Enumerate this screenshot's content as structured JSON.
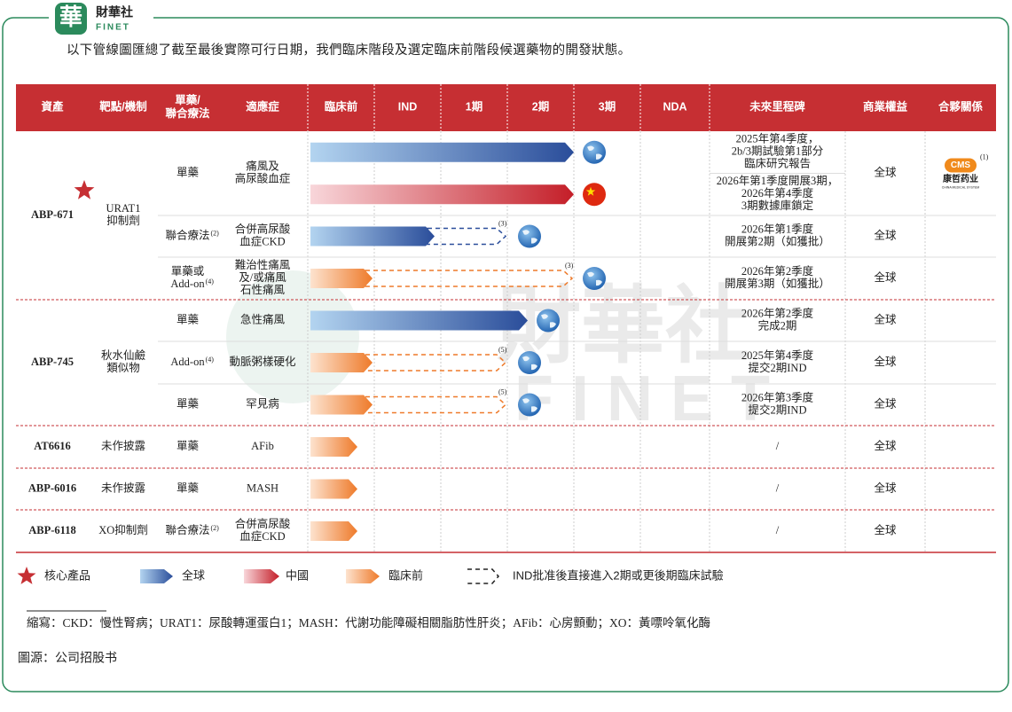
{
  "header": {
    "logo_mark": "華",
    "logo_text": "財華社",
    "logo_sub": "FINET",
    "intro": "以下管線圖匯總了截至最後實際可行日期，我們臨床階段及選定臨床前階段候選藥物的開發狀態。"
  },
  "watermark": {
    "text": "財華社",
    "sub": "FINET"
  },
  "table": {
    "columns": [
      [
        "資產"
      ],
      [
        "靶點/機制"
      ],
      [
        "單藥/",
        "聯合療法"
      ],
      [
        "適應症"
      ],
      [
        "臨床前"
      ],
      [
        "IND"
      ],
      [
        "1期"
      ],
      [
        "2期"
      ],
      [
        "3期"
      ],
      [
        "NDA"
      ],
      [
        "未來里程碑"
      ],
      [
        "商業權益"
      ],
      [
        "合夥關係"
      ]
    ],
    "assets": [
      {
        "name": "ABP-671",
        "target": [
          "URAT1",
          "抑制劑"
        ],
        "rows": [
          {
            "therapy": [
              "單藥"
            ],
            "indication": [
              "痛風及",
              "高尿酸血症"
            ],
            "milestones": [
              [
                "2025年第4季度，",
                "2b/3期試驗第1部分",
                "臨床研究報告"
              ],
              [
                "2026年第1季度開展3期，",
                "2026年第4季度",
                "3期數據庫鎖定"
              ]
            ],
            "rights": "全球",
            "partner": {
              "logo": "CMS",
              "name": "康哲药业",
              "sub": "CHINA MEDICAL SYSTEM",
              "note": "(1)"
            }
          },
          {
            "therapy": [
              "聯合療法"
            ],
            "therapy_note": "(2)",
            "indication": [
              "合併高尿酸",
              "血症CKD"
            ],
            "bar_note": "(3)",
            "milestones": [
              [
                "2026年第1季度",
                "開展第2期（如獲批）"
              ]
            ],
            "rights": "全球"
          },
          {
            "therapy": [
              "單藥或",
              "Add-on"
            ],
            "therapy_note": "(4)",
            "indication": [
              "難治性痛風",
              "及/或痛風",
              "石性痛風"
            ],
            "bar_note": "(3)",
            "milestones": [
              [
                "2026年第2季度",
                "開展第3期（如獲批）"
              ]
            ],
            "rights": "全球"
          }
        ]
      },
      {
        "name": "ABP-745",
        "target": [
          "秋水仙鹼",
          "類似物"
        ],
        "rows": [
          {
            "therapy": [
              "單藥"
            ],
            "indication": [
              "急性痛風"
            ],
            "milestones": [
              [
                "2026年第2季度",
                "完成2期"
              ]
            ],
            "rights": "全球"
          },
          {
            "therapy": [
              "Add-on"
            ],
            "therapy_note": "(4)",
            "indication": [
              "動脈粥樣硬化"
            ],
            "bar_note": "(5)",
            "milestones": [
              [
                "2025年第4季度",
                "提交2期IND"
              ]
            ],
            "rights": "全球"
          },
          {
            "therapy": [
              "單藥"
            ],
            "indication": [
              "罕見病"
            ],
            "bar_note": "(5)",
            "milestones": [
              [
                "2026年第3季度",
                "提交2期IND"
              ]
            ],
            "rights": "全球"
          }
        ]
      },
      {
        "name": "AT6616",
        "target": [
          "未作披露"
        ],
        "rows": [
          {
            "therapy": [
              "單藥"
            ],
            "indication": [
              "AFib"
            ],
            "milestones": [
              [
                "/"
              ]
            ],
            "rights": "全球"
          }
        ]
      },
      {
        "name": "ABP-6016",
        "target": [
          "未作披露"
        ],
        "rows": [
          {
            "therapy": [
              "單藥"
            ],
            "indication": [
              "MASH"
            ],
            "milestones": [
              [
                "/"
              ]
            ],
            "rights": "全球"
          }
        ]
      },
      {
        "name": "ABP-6118",
        "target": [
          "XO抑制劑"
        ],
        "rows": [
          {
            "therapy": [
              "聯合療法"
            ],
            "therapy_note": "(2)",
            "indication": [
              "合併高尿酸",
              "血症CKD"
            ],
            "milestones": [
              [
                "/"
              ]
            ],
            "rights": "全球"
          }
        ]
      }
    ]
  },
  "legend": [
    "核心產品",
    "全球",
    "中國",
    "臨床前",
    "IND批准後直接進入2期或更後期臨床試驗"
  ],
  "abbreviations": "縮寫：CKD：慢性腎病；URAT1：尿酸轉運蛋白1；MASH：代謝功能障礙相關脂肪性肝炎；AFib：心房顫動；XO：黃嘌呤氧化酶",
  "source": "圖源：公司招股书"
}
